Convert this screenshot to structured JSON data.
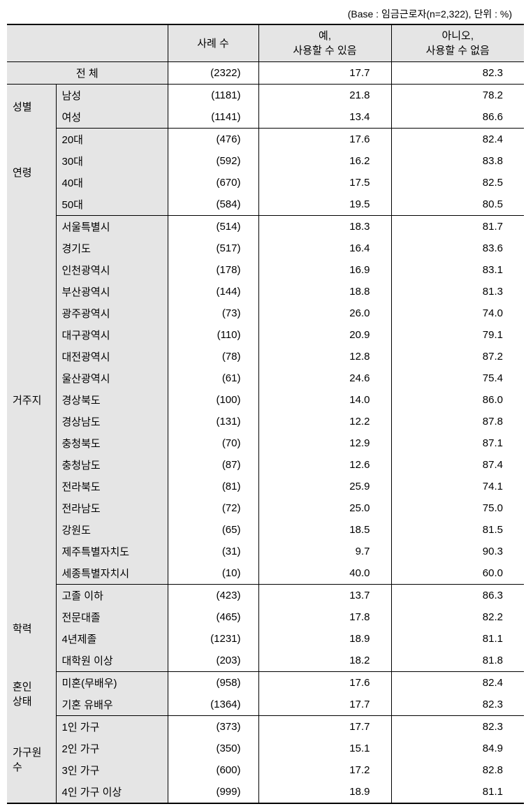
{
  "caption": "(Base : 임금근로자(n=2,322),  단위 : %)",
  "headers": {
    "count": "사례 수",
    "yes_l1": "예,",
    "yes_l2": "사용할 수 있음",
    "no_l1": "아니오,",
    "no_l2": "사용할 수 없음"
  },
  "total": {
    "label": "전 체",
    "count": "(2322)",
    "yes": "17.7",
    "no": "82.3"
  },
  "groups": [
    {
      "label": "성별",
      "rows": [
        {
          "label": "남성",
          "count": "(1181)",
          "yes": "21.8",
          "no": "78.2"
        },
        {
          "label": "여성",
          "count": "(1141)",
          "yes": "13.4",
          "no": "86.6"
        }
      ]
    },
    {
      "label": "연령",
      "rows": [
        {
          "label": "20대",
          "count": "(476)",
          "yes": "17.6",
          "no": "82.4"
        },
        {
          "label": "30대",
          "count": "(592)",
          "yes": "16.2",
          "no": "83.8"
        },
        {
          "label": "40대",
          "count": "(670)",
          "yes": "17.5",
          "no": "82.5"
        },
        {
          "label": "50대",
          "count": "(584)",
          "yes": "19.5",
          "no": "80.5"
        }
      ]
    },
    {
      "label": "거주지",
      "rows": [
        {
          "label": "서울특별시",
          "count": "(514)",
          "yes": "18.3",
          "no": "81.7"
        },
        {
          "label": "경기도",
          "count": "(517)",
          "yes": "16.4",
          "no": "83.6"
        },
        {
          "label": "인천광역시",
          "count": "(178)",
          "yes": "16.9",
          "no": "83.1"
        },
        {
          "label": "부산광역시",
          "count": "(144)",
          "yes": "18.8",
          "no": "81.3"
        },
        {
          "label": "광주광역시",
          "count": "(73)",
          "yes": "26.0",
          "no": "74.0"
        },
        {
          "label": "대구광역시",
          "count": "(110)",
          "yes": "20.9",
          "no": "79.1"
        },
        {
          "label": "대전광역시",
          "count": "(78)",
          "yes": "12.8",
          "no": "87.2"
        },
        {
          "label": "울산광역시",
          "count": "(61)",
          "yes": "24.6",
          "no": "75.4"
        },
        {
          "label": "경상북도",
          "count": "(100)",
          "yes": "14.0",
          "no": "86.0"
        },
        {
          "label": "경상남도",
          "count": "(131)",
          "yes": "12.2",
          "no": "87.8"
        },
        {
          "label": "충청북도",
          "count": "(70)",
          "yes": "12.9",
          "no": "87.1"
        },
        {
          "label": "충청남도",
          "count": "(87)",
          "yes": "12.6",
          "no": "87.4"
        },
        {
          "label": "전라북도",
          "count": "(81)",
          "yes": "25.9",
          "no": "74.1"
        },
        {
          "label": "전라남도",
          "count": "(72)",
          "yes": "25.0",
          "no": "75.0"
        },
        {
          "label": "강원도",
          "count": "(65)",
          "yes": "18.5",
          "no": "81.5"
        },
        {
          "label": "제주특별자치도",
          "count": "(31)",
          "yes": "9.7",
          "no": "90.3"
        },
        {
          "label": "세종특별자치시",
          "count": "(10)",
          "yes": "40.0",
          "no": "60.0"
        }
      ]
    },
    {
      "label": "학력",
      "rows": [
        {
          "label": "고졸 이하",
          "count": "(423)",
          "yes": "13.7",
          "no": "86.3"
        },
        {
          "label": "전문대졸",
          "count": "(465)",
          "yes": "17.8",
          "no": "82.2"
        },
        {
          "label": "4년제졸",
          "count": "(1231)",
          "yes": "18.9",
          "no": "81.1"
        },
        {
          "label": "대학원 이상",
          "count": "(203)",
          "yes": "18.2",
          "no": "81.8"
        }
      ]
    },
    {
      "label": "혼인\n상태",
      "rows": [
        {
          "label": "미혼(무배우)",
          "count": "(958)",
          "yes": "17.6",
          "no": "82.4"
        },
        {
          "label": "기혼 유배우",
          "count": "(1364)",
          "yes": "17.7",
          "no": "82.3"
        }
      ]
    },
    {
      "label": "가구원\n수",
      "rows": [
        {
          "label": "1인 가구",
          "count": "(373)",
          "yes": "17.7",
          "no": "82.3"
        },
        {
          "label": "2인 가구",
          "count": "(350)",
          "yes": "15.1",
          "no": "84.9"
        },
        {
          "label": "3인 가구",
          "count": "(600)",
          "yes": "17.2",
          "no": "82.8"
        },
        {
          "label": "4인 가구 이상",
          "count": "(999)",
          "yes": "18.9",
          "no": "81.1"
        }
      ]
    }
  ],
  "styling": {
    "header_bg": "#e5e5e5",
    "border_color": "#000000",
    "font_family": "Malgun Gothic",
    "base_fontsize": 15
  }
}
